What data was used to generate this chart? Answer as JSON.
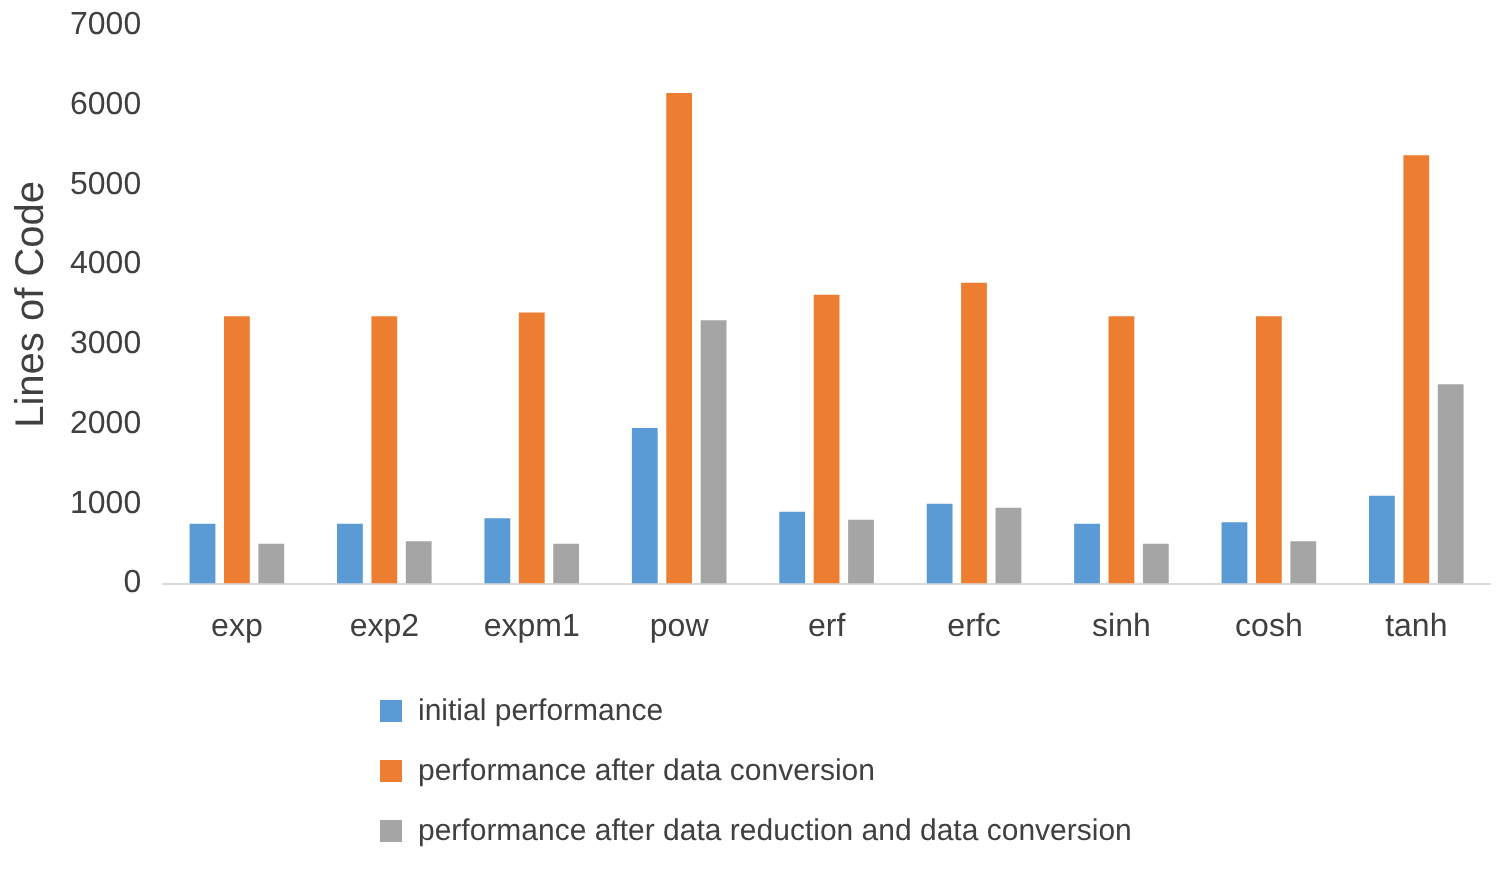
{
  "chart_data": {
    "type": "bar",
    "ylabel": "Lines of Code",
    "categories": [
      "exp",
      "exp2",
      "expm1",
      "pow",
      "erf",
      "erfc",
      "sinh",
      "cosh",
      "tanh"
    ],
    "series": [
      {
        "name": "initial performance",
        "color": "#5b9bd5",
        "values": [
          750,
          750,
          820,
          1950,
          900,
          1000,
          750,
          770,
          1100
        ]
      },
      {
        "name": "performance after data conversion",
        "color": "#ed7d31",
        "values": [
          3350,
          3350,
          3400,
          6150,
          3620,
          3770,
          3350,
          3350,
          5370
        ]
      },
      {
        "name": "performance after data reduction and data conversion",
        "color": "#a5a5a5",
        "values": [
          500,
          530,
          500,
          3300,
          800,
          950,
          500,
          530,
          2500
        ]
      }
    ],
    "ylim": [
      0,
      7000
    ],
    "yticks": [
      0,
      1000,
      2000,
      3000,
      4000,
      5000,
      6000,
      7000
    ],
    "grid": false,
    "legend": "bottom"
  }
}
